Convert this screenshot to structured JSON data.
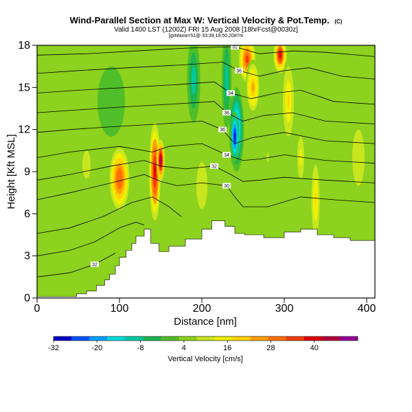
{
  "chart_data": {
    "type": "heatmap",
    "title": "Wind-Parallel Section at Max W: Vertical Velocity & Pot.Temp.",
    "title_mark": "(C)",
    "subtitle": "Valid 1400 LST (1200Z) FRI 15 Aug 2008 [18hrFcst@0030z]",
    "subtitle2": "[gxMaxw=51@ 33:39,19:50,2087m",
    "xlabel": "Distance [nm]",
    "ylabel": "Height [Kft MSL]",
    "xlim": [
      0,
      410
    ],
    "ylim": [
      0,
      18
    ],
    "x_ticks": [
      "0",
      "100",
      "200",
      "300",
      "400"
    ],
    "y_ticks": [
      "0",
      "3",
      "6",
      "9",
      "12",
      "15",
      "18"
    ],
    "grid": false,
    "colorbar": {
      "title": "Vertical Velocity [cm/s]",
      "min": -32,
      "max": 52,
      "tick_labels": [
        "-32",
        "-20",
        "-8",
        "4",
        "16",
        "28",
        "40"
      ],
      "colors": [
        "#0000c8",
        "#0050ff",
        "#00a0ff",
        "#00dcdc",
        "#00c8a0",
        "#1eb450",
        "#50be28",
        "#8cd21e",
        "#c8e61e",
        "#f0f000",
        "#ffd200",
        "#ffa000",
        "#ff6e00",
        "#f03c00",
        "#dc0000",
        "#b4003c",
        "#960096"
      ]
    },
    "terrain": {
      "x": [
        0,
        48,
        48,
        60,
        60,
        72,
        72,
        82,
        82,
        88,
        88,
        95,
        95,
        100,
        100,
        108,
        108,
        115,
        115,
        120,
        120,
        130,
        130,
        138,
        138,
        148,
        148,
        160,
        160,
        180,
        180,
        200,
        200,
        212,
        212,
        228,
        228,
        240,
        240,
        252,
        252,
        275,
        275,
        300,
        300,
        320,
        320,
        340,
        340,
        360,
        360,
        380,
        380,
        410
      ],
      "y": [
        0.1,
        0.1,
        0.3,
        0.3,
        0.5,
        0.5,
        0.9,
        0.9,
        1.3,
        1.3,
        1.7,
        1.7,
        2.3,
        2.3,
        2.9,
        2.9,
        3.4,
        3.4,
        3.9,
        3.9,
        4.4,
        4.4,
        4.9,
        4.9,
        3.9,
        3.9,
        3.3,
        3.3,
        3.7,
        3.7,
        4.2,
        4.2,
        4.9,
        4.9,
        5.5,
        5.5,
        5.1,
        5.1,
        4.6,
        4.6,
        4.5,
        4.5,
        4.3,
        4.3,
        4.7,
        4.7,
        4.9,
        4.9,
        4.5,
        4.5,
        4.3,
        4.3,
        4.1,
        4.1
      ]
    },
    "velocity_features": [
      {
        "x": 100,
        "y": 8.5,
        "rx": 12,
        "ry": 2.2,
        "value": 32
      },
      {
        "x": 143,
        "y": 9.0,
        "rx": 7,
        "ry": 3.5,
        "value": 42
      },
      {
        "x": 150,
        "y": 9.8,
        "rx": 5,
        "ry": 1.5,
        "value": 48
      },
      {
        "x": 242,
        "y": 12.0,
        "rx": 9,
        "ry": 3.0,
        "value": -26
      },
      {
        "x": 240,
        "y": 11.5,
        "rx": 5,
        "ry": 1.8,
        "value": -32
      },
      {
        "x": 255,
        "y": 17.0,
        "rx": 10,
        "ry": 1.6,
        "value": 36
      },
      {
        "x": 262,
        "y": 15.0,
        "rx": 9,
        "ry": 2.0,
        "value": 24
      },
      {
        "x": 295,
        "y": 17.3,
        "rx": 8,
        "ry": 1.3,
        "value": 40
      },
      {
        "x": 305,
        "y": 14.0,
        "rx": 8,
        "ry": 3.0,
        "value": 20
      },
      {
        "x": 320,
        "y": 10.0,
        "rx": 5,
        "ry": 1.8,
        "value": 16
      },
      {
        "x": 338,
        "y": 7.0,
        "rx": 6,
        "ry": 3.0,
        "value": 18
      },
      {
        "x": 190,
        "y": 15.5,
        "rx": 8,
        "ry": 3.0,
        "value": -10
      },
      {
        "x": 230,
        "y": 15.5,
        "rx": 6,
        "ry": 3.5,
        "value": -12
      },
      {
        "x": 90,
        "y": 14.0,
        "rx": 20,
        "ry": 3.0,
        "value": -2
      },
      {
        "x": 60,
        "y": 9.5,
        "rx": 10,
        "ry": 2.0,
        "value": 10
      },
      {
        "x": 390,
        "y": 10.0,
        "rx": 15,
        "ry": 4.0,
        "value": 10
      },
      {
        "x": 200,
        "y": 8.0,
        "rx": 10,
        "ry": 2.5,
        "value": 12
      },
      {
        "x": 280,
        "y": 10.0,
        "rx": 8,
        "ry": 2.0,
        "value": 8
      }
    ],
    "contours": [
      {
        "label": "32",
        "points": [
          [
            0,
            1.5
          ],
          [
            40,
            1.8
          ],
          [
            70,
            2.4
          ],
          [
            95,
            3.2
          ]
        ]
      },
      {
        "label": "",
        "points": [
          [
            0,
            3.0
          ],
          [
            40,
            3.4
          ],
          [
            70,
            4.0
          ],
          [
            100,
            5.0
          ],
          [
            120,
            5.4
          ],
          [
            130,
            5.2
          ]
        ]
      },
      {
        "label": "",
        "points": [
          [
            0,
            4.6
          ],
          [
            40,
            5.0
          ],
          [
            80,
            5.8
          ],
          [
            115,
            6.8
          ],
          [
            140,
            7.2
          ],
          [
            160,
            6.5
          ],
          [
            175,
            5.8
          ]
        ]
      },
      {
        "label": "30",
        "points": [
          [
            0,
            7.0
          ],
          [
            40,
            7.5
          ],
          [
            90,
            8.2
          ],
          [
            130,
            8.8
          ],
          [
            150,
            8.3
          ],
          [
            170,
            8.0
          ],
          [
            200,
            8.2
          ],
          [
            230,
            8.0
          ],
          [
            240,
            7.2
          ],
          [
            250,
            6.5
          ],
          [
            280,
            6.5
          ],
          [
            320,
            7.2
          ],
          [
            360,
            7.0
          ],
          [
            410,
            6.8
          ]
        ]
      },
      {
        "label": "32",
        "points": [
          [
            0,
            8.4
          ],
          [
            40,
            8.8
          ],
          [
            90,
            9.4
          ],
          [
            130,
            9.8
          ],
          [
            150,
            9.4
          ],
          [
            180,
            9.2
          ],
          [
            215,
            9.4
          ],
          [
            235,
            8.8
          ],
          [
            250,
            8.3
          ],
          [
            270,
            8.4
          ],
          [
            300,
            8.6
          ],
          [
            350,
            8.4
          ],
          [
            410,
            8.2
          ]
        ]
      },
      {
        "label": "34",
        "points": [
          [
            0,
            10.0
          ],
          [
            40,
            10.4
          ],
          [
            100,
            10.8
          ],
          [
            140,
            10.4
          ],
          [
            160,
            10.8
          ],
          [
            200,
            11.0
          ],
          [
            230,
            10.2
          ],
          [
            250,
            9.8
          ],
          [
            270,
            9.9
          ],
          [
            300,
            10.2
          ],
          [
            350,
            9.8
          ],
          [
            410,
            9.6
          ]
        ]
      },
      {
        "label": "36",
        "points": [
          [
            0,
            11.8
          ],
          [
            40,
            12.0
          ],
          [
            90,
            12.2
          ],
          [
            150,
            12.4
          ],
          [
            200,
            12.6
          ],
          [
            225,
            12.0
          ],
          [
            240,
            11.0
          ],
          [
            260,
            11.4
          ],
          [
            300,
            11.8
          ],
          [
            350,
            11.2
          ],
          [
            410,
            11.0
          ]
        ]
      },
      {
        "label": "36",
        "points": [
          [
            0,
            13.2
          ],
          [
            50,
            13.4
          ],
          [
            100,
            13.6
          ],
          [
            160,
            13.8
          ],
          [
            215,
            14.0
          ],
          [
            230,
            13.2
          ],
          [
            250,
            12.6
          ],
          [
            275,
            13.0
          ],
          [
            310,
            13.2
          ],
          [
            350,
            12.6
          ],
          [
            410,
            12.4
          ]
        ]
      },
      {
        "label": "34",
        "points": [
          [
            0,
            14.6
          ],
          [
            50,
            14.8
          ],
          [
            110,
            15.0
          ],
          [
            170,
            15.2
          ],
          [
            215,
            15.4
          ],
          [
            235,
            14.6
          ],
          [
            260,
            14.2
          ],
          [
            290,
            14.6
          ],
          [
            320,
            14.8
          ],
          [
            360,
            14.0
          ],
          [
            410,
            13.8
          ]
        ]
      },
      {
        "label": "36",
        "points": [
          [
            0,
            16.0
          ],
          [
            50,
            16.2
          ],
          [
            110,
            16.4
          ],
          [
            175,
            16.6
          ],
          [
            225,
            16.8
          ],
          [
            245,
            16.2
          ],
          [
            270,
            15.8
          ],
          [
            300,
            16.2
          ],
          [
            330,
            16.4
          ],
          [
            370,
            15.8
          ],
          [
            410,
            15.6
          ]
        ]
      },
      {
        "label": "32",
        "points": [
          [
            0,
            17.3
          ],
          [
            60,
            17.4
          ],
          [
            120,
            17.6
          ],
          [
            180,
            17.8
          ],
          [
            240,
            17.9
          ],
          [
            270,
            17.4
          ],
          [
            310,
            17.6
          ],
          [
            350,
            17.5
          ],
          [
            410,
            17.2
          ]
        ]
      }
    ]
  }
}
